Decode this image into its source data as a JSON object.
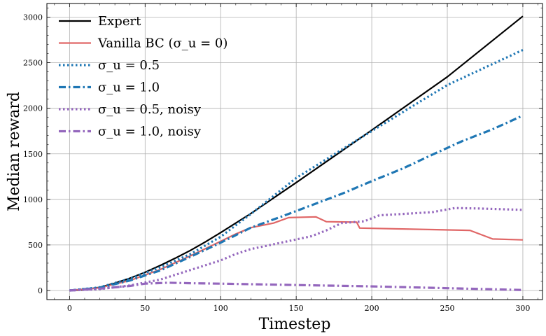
{
  "chart_data": {
    "type": "line",
    "title": "",
    "xlabel": "Timestep",
    "ylabel": "Median reward",
    "xlim": [
      -15,
      313
    ],
    "ylim": [
      -100,
      3150
    ],
    "xticks": [
      0,
      50,
      100,
      150,
      200,
      250,
      300
    ],
    "yticks": [
      0,
      500,
      1000,
      1500,
      2000,
      2500,
      3000
    ],
    "grid": true,
    "legend_position": "top-left",
    "series": [
      {
        "name": "Expert",
        "color": "#000000",
        "style": "solid",
        "points": [
          [
            0,
            0
          ],
          [
            10,
            8
          ],
          [
            20,
            35
          ],
          [
            30,
            80
          ],
          [
            40,
            135
          ],
          [
            50,
            200
          ],
          [
            60,
            275
          ],
          [
            70,
            355
          ],
          [
            80,
            440
          ],
          [
            90,
            535
          ],
          [
            100,
            635
          ],
          [
            120,
            845
          ],
          [
            150,
            1185
          ],
          [
            200,
            1760
          ],
          [
            250,
            2345
          ],
          [
            300,
            3010
          ]
        ]
      },
      {
        "name": "Vanilla BC (σ_u = 0)",
        "color": "#e06666",
        "style": "solid",
        "points": [
          [
            0,
            0
          ],
          [
            20,
            30
          ],
          [
            40,
            110
          ],
          [
            60,
            230
          ],
          [
            80,
            380
          ],
          [
            100,
            540
          ],
          [
            110,
            620
          ],
          [
            120,
            690
          ],
          [
            135,
            740
          ],
          [
            145,
            800
          ],
          [
            163,
            808
          ],
          [
            170,
            755
          ],
          [
            190,
            750
          ],
          [
            192,
            685
          ],
          [
            265,
            660
          ],
          [
            280,
            565
          ],
          [
            300,
            555
          ]
        ]
      },
      {
        "name": "σ_u = 0.5",
        "color": "#1f77b4",
        "style": "dotted",
        "points": [
          [
            0,
            0
          ],
          [
            20,
            35
          ],
          [
            40,
            130
          ],
          [
            60,
            255
          ],
          [
            80,
            400
          ],
          [
            100,
            590
          ],
          [
            120,
            840
          ],
          [
            150,
            1235
          ],
          [
            200,
            1750
          ],
          [
            250,
            2255
          ],
          [
            300,
            2640
          ]
        ]
      },
      {
        "name": "σ_u = 1.0",
        "color": "#1f77b4",
        "style": "dashdot",
        "points": [
          [
            0,
            0
          ],
          [
            20,
            30
          ],
          [
            40,
            110
          ],
          [
            60,
            220
          ],
          [
            80,
            370
          ],
          [
            100,
            525
          ],
          [
            120,
            690
          ],
          [
            140,
            810
          ],
          [
            160,
            935
          ],
          [
            180,
            1060
          ],
          [
            200,
            1200
          ],
          [
            220,
            1335
          ],
          [
            240,
            1490
          ],
          [
            260,
            1640
          ],
          [
            280,
            1770
          ],
          [
            300,
            1920
          ]
        ]
      },
      {
        "name": "σ_u = 0.5, noisy",
        "color": "#9467bd",
        "style": "dotted",
        "points": [
          [
            0,
            0
          ],
          [
            20,
            15
          ],
          [
            40,
            55
          ],
          [
            60,
            120
          ],
          [
            80,
            225
          ],
          [
            100,
            330
          ],
          [
            110,
            400
          ],
          [
            120,
            455
          ],
          [
            140,
            525
          ],
          [
            160,
            595
          ],
          [
            170,
            660
          ],
          [
            180,
            740
          ],
          [
            195,
            760
          ],
          [
            205,
            825
          ],
          [
            220,
            840
          ],
          [
            240,
            860
          ],
          [
            255,
            905
          ],
          [
            270,
            900
          ],
          [
            300,
            885
          ]
        ]
      },
      {
        "name": "σ_u = 1.0, noisy",
        "color": "#9467bd",
        "style": "dashdot",
        "points": [
          [
            0,
            0
          ],
          [
            20,
            20
          ],
          [
            40,
            50
          ],
          [
            50,
            75
          ],
          [
            65,
            85
          ],
          [
            80,
            80
          ],
          [
            100,
            75
          ],
          [
            150,
            60
          ],
          [
            200,
            45
          ],
          [
            250,
            25
          ],
          [
            300,
            5
          ]
        ]
      }
    ]
  }
}
